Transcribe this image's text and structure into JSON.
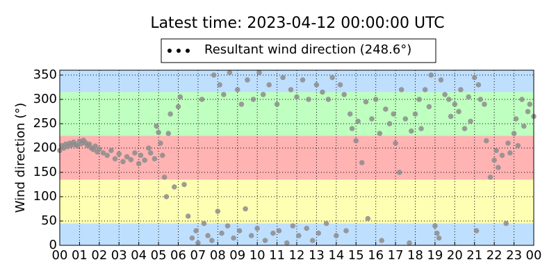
{
  "chart_data": {
    "type": "scatter",
    "title": "Latest time: 2023-04-12 00:00:00 UTC",
    "ylabel": "Wind direction (°)",
    "legend_location": "upper center",
    "legend_marker_color": "#000000",
    "grid": true,
    "xlim": [
      0,
      24
    ],
    "ylim": [
      0,
      360
    ],
    "yticks": [
      0,
      50,
      100,
      150,
      200,
      250,
      300,
      350
    ],
    "xticks": [
      {
        "value": 0,
        "label": "00"
      },
      {
        "value": 1,
        "label": "01"
      },
      {
        "value": 2,
        "label": "02"
      },
      {
        "value": 3,
        "label": "03"
      },
      {
        "value": 4,
        "label": "04"
      },
      {
        "value": 5,
        "label": "05"
      },
      {
        "value": 6,
        "label": "06"
      },
      {
        "value": 7,
        "label": "07"
      },
      {
        "value": 8,
        "label": "08"
      },
      {
        "value": 9,
        "label": "09"
      },
      {
        "value": 10,
        "label": "10"
      },
      {
        "value": 11,
        "label": "11"
      },
      {
        "value": 12,
        "label": "12"
      },
      {
        "value": 13,
        "label": "13"
      },
      {
        "value": 14,
        "label": "14"
      },
      {
        "value": 15,
        "label": "15"
      },
      {
        "value": 16,
        "label": "16"
      },
      {
        "value": 17,
        "label": "17"
      },
      {
        "value": 18,
        "label": "18"
      },
      {
        "value": 19,
        "label": "19"
      },
      {
        "value": 20,
        "label": "20"
      },
      {
        "value": 21,
        "label": "21"
      },
      {
        "value": 22,
        "label": "22"
      },
      {
        "value": 23,
        "label": "23"
      },
      {
        "value": 24,
        "label": "00"
      }
    ],
    "bands": [
      {
        "from": 0,
        "to": 45,
        "color": "#bfdfff"
      },
      {
        "from": 45,
        "to": 135,
        "color": "#ffffb3"
      },
      {
        "from": 135,
        "to": 225,
        "color": "#ffb3b3"
      },
      {
        "from": 225,
        "to": 315,
        "color": "#bfffbf"
      },
      {
        "from": 315,
        "to": 360,
        "color": "#bfdfff"
      }
    ],
    "x": [
      0.0,
      0.1,
      0.2,
      0.3,
      0.4,
      0.5,
      0.6,
      0.7,
      0.8,
      0.9,
      1.0,
      1.1,
      1.2,
      1.3,
      1.4,
      1.5,
      1.6,
      1.7,
      1.8,
      1.9,
      2.0,
      2.2,
      2.4,
      2.6,
      2.8,
      3.0,
      3.2,
      3.4,
      3.6,
      3.8,
      4.0,
      4.1,
      4.3,
      4.5,
      4.6,
      4.8,
      4.9,
      5.0,
      5.1,
      5.2,
      5.3,
      5.4,
      5.5,
      5.6,
      5.8,
      6.0,
      6.1,
      6.3,
      6.5,
      6.7,
      6.9,
      7.0,
      7.2,
      7.3,
      7.5,
      7.7,
      7.8,
      8.0,
      8.1,
      8.2,
      8.3,
      8.5,
      8.6,
      8.8,
      9.0,
      9.1,
      9.2,
      9.4,
      9.5,
      9.7,
      9.8,
      10.0,
      10.1,
      10.3,
      10.4,
      10.6,
      10.8,
      11.0,
      11.1,
      11.3,
      11.5,
      11.7,
      11.8,
      12.0,
      12.1,
      12.3,
      12.5,
      12.6,
      12.8,
      13.0,
      13.1,
      13.3,
      13.5,
      13.6,
      13.8,
      14.0,
      14.2,
      14.4,
      14.5,
      14.7,
      14.8,
      15.0,
      15.1,
      15.3,
      15.5,
      15.6,
      15.8,
      16.0,
      16.2,
      16.3,
      16.5,
      16.7,
      16.9,
      17.0,
      17.2,
      17.3,
      17.5,
      17.7,
      17.8,
      18.0,
      18.2,
      18.3,
      18.5,
      18.7,
      18.8,
      19.0,
      19.1,
      19.2,
      19.3,
      19.5,
      19.7,
      19.8,
      20.0,
      20.2,
      20.3,
      20.5,
      20.7,
      20.8,
      21.0,
      21.1,
      21.2,
      21.3,
      21.5,
      21.6,
      21.8,
      22.0,
      22.1,
      22.2,
      22.4,
      22.6,
      22.7,
      22.8,
      23.0,
      23.1,
      23.2,
      23.4,
      23.5,
      23.7,
      23.8,
      24.0
    ],
    "series": [
      {
        "name": "Resultant wind direction (248.6°)",
        "color": "#8c8c8c",
        "values": [
          195,
          205,
          200,
          208,
          203,
          210,
          206,
          212,
          207,
          204,
          214,
          209,
          216,
          211,
          205,
          208,
          200,
          197,
          204,
          192,
          198,
          190,
          185,
          195,
          178,
          188,
          172,
          182,
          176,
          190,
          168,
          185,
          175,
          200,
          190,
          178,
          245,
          232,
          210,
          185,
          140,
          100,
          230,
          270,
          120,
          285,
          305,
          125,
          60,
          15,
          30,
          5,
          300,
          45,
          20,
          10,
          350,
          70,
          330,
          25,
          310,
          40,
          355,
          15,
          320,
          30,
          290,
          75,
          340,
          20,
          300,
          35,
          355,
          310,
          10,
          330,
          25,
          290,
          30,
          345,
          5,
          320,
          40,
          305,
          20,
          340,
          35,
          300,
          10,
          330,
          25,
          315,
          45,
          300,
          345,
          20,
          330,
          310,
          30,
          270,
          240,
          215,
          255,
          170,
          295,
          55,
          260,
          300,
          230,
          10,
          280,
          250,
          270,
          210,
          150,
          320,
          260,
          5,
          235,
          270,
          300,
          240,
          320,
          285,
          350,
          40,
          25,
          15,
          340,
          310,
          300,
          265,
          290,
          275,
          320,
          240,
          305,
          255,
          345,
          30,
          330,
          300,
          290,
          215,
          140,
          175,
          195,
          160,
          185,
          45,
          210,
          190,
          230,
          260,
          205,
          300,
          245,
          275,
          290,
          265
        ]
      }
    ]
  }
}
